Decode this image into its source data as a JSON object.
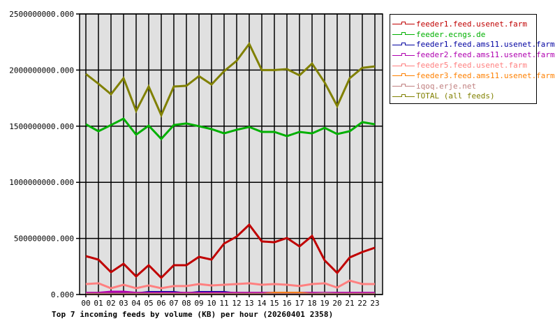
{
  "chart_data": {
    "type": "line",
    "title": "Top 7 incoming feeds by volume (KB) per hour (20260401 2358)",
    "xlabel": "",
    "ylabel": "",
    "ylim": [
      0,
      2500000000
    ],
    "yticks": [
      "0.000",
      "500000000.000",
      "1000000000.000",
      "1500000000.000",
      "2000000000.000",
      "2500000000.000"
    ],
    "categories": [
      "00",
      "01",
      "02",
      "03",
      "04",
      "05",
      "06",
      "07",
      "08",
      "09",
      "10",
      "11",
      "12",
      "13",
      "14",
      "15",
      "16",
      "17",
      "18",
      "19",
      "20",
      "21",
      "22",
      "23"
    ],
    "grid": true,
    "legend_position": "right",
    "series": [
      {
        "name": "feeder1.feed.usenet.farm",
        "color": "#c00000",
        "values": [
          342000000,
          311000000,
          199000000,
          274000000,
          162000000,
          261000000,
          149000000,
          261000000,
          261000000,
          336000000,
          311000000,
          454000000,
          516000000,
          622000000,
          473000000,
          466000000,
          504000000,
          429000000,
          522000000,
          305000000,
          193000000,
          330000000,
          379000000,
          417000000
        ]
      },
      {
        "name": "feeder.ecngs.de",
        "color": "#00b000",
        "values": [
          1517000000,
          1455000000,
          1510000000,
          1567000000,
          1424000000,
          1505000000,
          1387000000,
          1510000000,
          1524000000,
          1500000000,
          1474000000,
          1436000000,
          1468000000,
          1493000000,
          1449000000,
          1449000000,
          1412000000,
          1449000000,
          1436000000,
          1486000000,
          1430000000,
          1455000000,
          1536000000,
          1517000000
        ]
      },
      {
        "name": "feeder1.feed.ams11.usenet.farm",
        "color": "#0000a0",
        "values": [
          10000000,
          10000000,
          10000000,
          10000000,
          10000000,
          22000000,
          22000000,
          22000000,
          10000000,
          22000000,
          22000000,
          22000000,
          10000000,
          10000000,
          10000000,
          10000000,
          10000000,
          10000000,
          10000000,
          10000000,
          10000000,
          10000000,
          10000000,
          10000000
        ]
      },
      {
        "name": "feeder2.feed.ams11.usenet.farm",
        "color": "#b000b0",
        "values": [
          15000000,
          15000000,
          25000000,
          25000000,
          15000000,
          15000000,
          15000000,
          15000000,
          15000000,
          15000000,
          15000000,
          15000000,
          15000000,
          15000000,
          15000000,
          15000000,
          15000000,
          15000000,
          15000000,
          15000000,
          15000000,
          15000000,
          15000000,
          15000000
        ]
      },
      {
        "name": "feeder5.feed.usenet.farm",
        "color": "#ff8080",
        "values": [
          93000000,
          100000000,
          56000000,
          87000000,
          56000000,
          81000000,
          56000000,
          75000000,
          75000000,
          93000000,
          81000000,
          87000000,
          93000000,
          100000000,
          87000000,
          93000000,
          87000000,
          75000000,
          93000000,
          100000000,
          62000000,
          124000000,
          93000000,
          93000000
        ]
      },
      {
        "name": "feeder3.feed.ams11.usenet.farm",
        "color": "#ff8000",
        "values": [
          5000000,
          5000000,
          5000000,
          5000000,
          5000000,
          5000000,
          5000000,
          5000000,
          5000000,
          5000000,
          5000000,
          5000000,
          5000000,
          5000000,
          5000000,
          15000000,
          15000000,
          15000000,
          5000000,
          5000000,
          5000000,
          5000000,
          5000000,
          5000000
        ]
      },
      {
        "name": "iqoq.erje.net",
        "color": "#c08080",
        "values": [
          5000000,
          5000000,
          5000000,
          5000000,
          5000000,
          5000000,
          5000000,
          5000000,
          5000000,
          5000000,
          5000000,
          5000000,
          5000000,
          5000000,
          5000000,
          5000000,
          5000000,
          5000000,
          5000000,
          10000000,
          5000000,
          5000000,
          5000000,
          5000000
        ]
      },
      {
        "name": "TOTAL (all feeds)",
        "color": "#808000",
        "values": [
          1965000000,
          1878000000,
          1785000000,
          1928000000,
          1636000000,
          1853000000,
          1598000000,
          1853000000,
          1860000000,
          1946000000,
          1872000000,
          1990000000,
          2083000000,
          2233000000,
          2000000000,
          2000000000,
          2009000000,
          1953000000,
          2058000000,
          1890000000,
          1679000000,
          1928000000,
          2020000000,
          2033000000
        ]
      }
    ]
  },
  "plot": {
    "background": "#e0e0e0"
  }
}
